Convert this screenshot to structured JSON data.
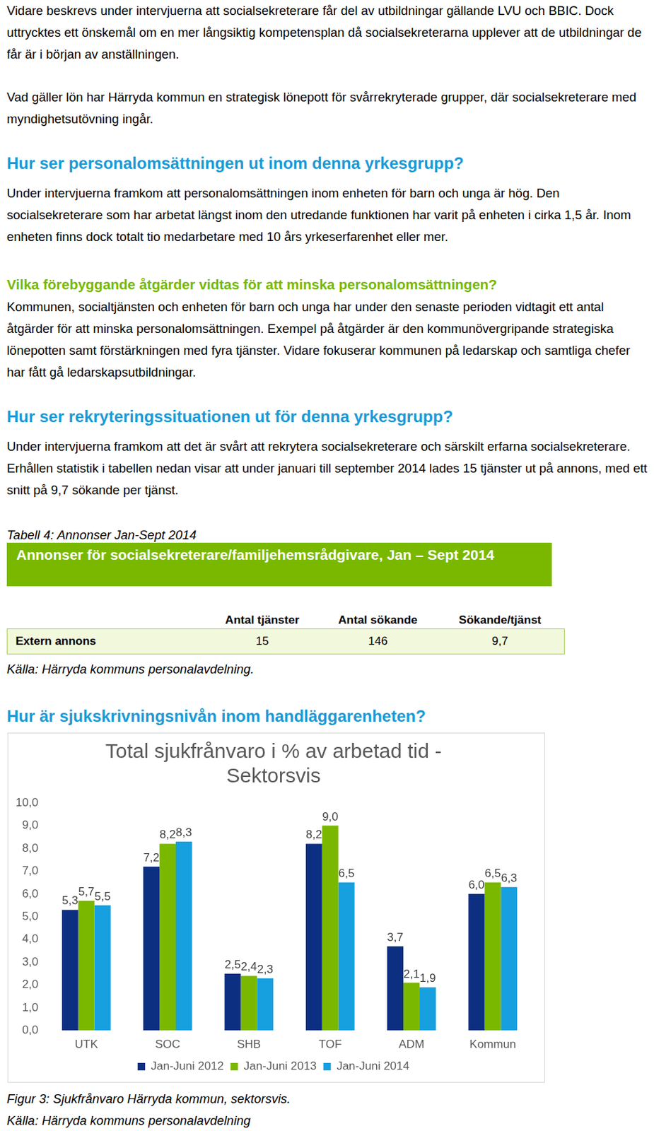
{
  "document": {
    "blocks": [
      {
        "type": "paragraph",
        "text": "Vidare beskrevs under intervjuerna att socialsekreterare får del av utbildningar gällande LVU och BBIC. Dock uttrycktes ett önskemål om en mer långsiktig kompetensplan då socialsekreterarna upplever att de utbildningar de får är i början av anställningen."
      },
      {
        "type": "paragraph",
        "text": "Vad gäller lön har Härryda kommun en strategisk lönepott för svårrekryterade grupper, där socialsekreterare med myndighetsutövning ingår."
      },
      {
        "type": "heading",
        "text": "Hur ser personalomsättningen ut inom denna yrkesgrupp?",
        "color": "#1a9ad6"
      },
      {
        "type": "paragraph",
        "text": "Under intervjuerna framkom att personalomsättningen inom enheten för barn och unga är hög. Den socialsekreterare som har arbetat längst inom den utredande funktionen har varit på enheten i cirka 1,5 år. Inom enheten finns dock totalt tio medarbetare med 10 års yrkeserfarenhet eller mer."
      },
      {
        "type": "subheading",
        "text": "Vilka förebyggande åtgärder vidtas för att minska personalomsättningen?",
        "color": "#77b800"
      },
      {
        "type": "paragraph",
        "text": "Kommunen, socialtjänsten och enheten för barn och unga har under den senaste perioden vidtagit ett antal åtgärder för att minska personalomsättningen. Exempel på åtgärder är den kommunövergripande strategiska lönepotten samt förstärkningen med fyra tjänster. Vidare fokuserar kommunen på ledarskap och samtliga chefer har fått gå ledarskapsutbildningar."
      },
      {
        "type": "heading",
        "text": "Hur ser rekryteringssituationen ut för denna yrkesgrupp?",
        "color": "#1a9ad6"
      },
      {
        "type": "paragraph",
        "text": "Under intervjuerna framkom att det är svårt att rekrytera socialsekreterare och särskilt erfarna socialsekreterare. Erhållen statistik i tabellen nedan visar att under januari till september 2014 lades 15 tjänster ut på annons, med ett snitt på 9,7 sökande per tjänst."
      },
      {
        "type": "table",
        "caption": "Tabell 4: Annonser Jan-Sept 2014",
        "title": "Annonser för socialsekreterare/familjehemsrådgivare, Jan – Sept 2014",
        "columns": [
          "Antal tjänster",
          "Antal sökande",
          "Sökande/tjänst"
        ],
        "rows": [
          [
            "Extern annons",
            15,
            146,
            "9,7"
          ]
        ],
        "source": "Källa: Härryda kommuns personalavdelning."
      },
      {
        "type": "heading",
        "text": "Hur är sjukskrivningsnivån inom handläggarenheten?",
        "color": "#1a9ad6"
      },
      {
        "type": "caption",
        "text": "Figur 3: Sjukfrånvaro Härryda kommun, sektorsvis."
      },
      {
        "type": "caption",
        "text": "Källa: Härryda kommuns personalavdelning"
      }
    ]
  },
  "chart_data": {
    "type": "bar",
    "title": [
      "Total sjukfrånvaro i % av arbetad tid -",
      "Sektorsvis"
    ],
    "categories": [
      "UTK",
      "SOC",
      "SHB",
      "TOF",
      "ADM",
      "Kommun"
    ],
    "series": [
      {
        "name": "Jan-Juni 2012",
        "color": "#0d2f82",
        "values": [
          5.3,
          7.2,
          2.5,
          8.2,
          3.7,
          6.0
        ],
        "value_labels": [
          "5,3",
          "7,2",
          "2,5",
          "8,2",
          "3,7",
          "6,0"
        ]
      },
      {
        "name": "Jan-Juni 2013",
        "color": "#7ab800",
        "values": [
          5.7,
          8.2,
          2.4,
          9.0,
          2.1,
          6.5
        ],
        "value_labels": [
          "5,7",
          "8,2",
          "2,4",
          "9,0",
          "2,1",
          "6,5"
        ]
      },
      {
        "name": "Jan-Juni 2014",
        "color": "#16a0e0",
        "values": [
          5.5,
          8.3,
          2.3,
          6.5,
          1.9,
          6.3
        ],
        "value_labels": [
          "5,5",
          "8,3",
          "2,3",
          "6,5",
          "1,9",
          "6,3"
        ]
      }
    ],
    "ylim": [
      0,
      10
    ],
    "yticks": [
      {
        "value": 0,
        "label": "0,0"
      },
      {
        "value": 1,
        "label": "1,0"
      },
      {
        "value": 2,
        "label": "2,0"
      },
      {
        "value": 3,
        "label": "3,0"
      },
      {
        "value": 4,
        "label": "4,0"
      },
      {
        "value": 5,
        "label": "5,0"
      },
      {
        "value": 6,
        "label": "6,0"
      },
      {
        "value": 7,
        "label": "7,0"
      },
      {
        "value": 8,
        "label": "8,0"
      },
      {
        "value": 9,
        "label": "9,0"
      },
      {
        "value": 10,
        "label": "10,0"
      }
    ],
    "grid": false,
    "legend": "bottom",
    "data_labels": true
  }
}
